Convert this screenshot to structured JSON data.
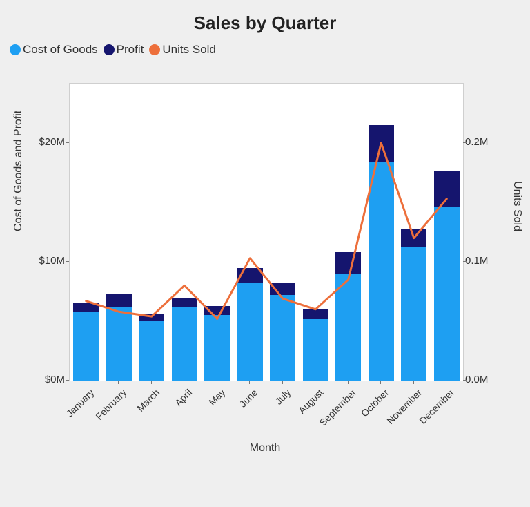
{
  "chart": {
    "type": "stacked-bar-with-line",
    "title": "Sales by Quarter",
    "background_color": "#efefef",
    "plot_background": "#ffffff",
    "plot_border_color": "#cfcfcf",
    "title_fontsize": 26,
    "label_fontsize": 16,
    "tick_fontsize": 15,
    "x_axis": {
      "label": "Month",
      "categories": [
        "January",
        "February",
        "March",
        "April",
        "May",
        "June",
        "July",
        "August",
        "September",
        "October",
        "November",
        "December"
      ],
      "tick_rotation_deg": -45
    },
    "y_axis_left": {
      "label": "Cost of Goods and Profit",
      "min": 0,
      "max": 25,
      "ticks": [
        0,
        10,
        20
      ],
      "tick_labels": [
        "$0M",
        "$10M",
        "$20M"
      ]
    },
    "y_axis_right": {
      "label": "Units Sold",
      "min": 0,
      "max": 0.25,
      "ticks": [
        0.0,
        0.1,
        0.2
      ],
      "tick_labels": [
        "0.0M",
        "0.1M",
        "0.2M"
      ]
    },
    "series": {
      "cost_of_goods": {
        "label": "Cost of Goods",
        "type": "bar",
        "stack": 0,
        "color": "#1e9ff2",
        "values": [
          5.8,
          6.2,
          5.0,
          6.2,
          5.5,
          8.2,
          7.2,
          5.2,
          9.0,
          18.4,
          11.3,
          14.6
        ]
      },
      "profit": {
        "label": "Profit",
        "type": "bar",
        "stack": 1,
        "color": "#15156e",
        "values": [
          0.8,
          1.1,
          0.6,
          0.8,
          0.8,
          1.3,
          1.0,
          0.8,
          1.8,
          3.1,
          1.5,
          3.0
        ]
      },
      "units_sold": {
        "label": "Units Sold",
        "type": "line",
        "color": "#ed6f3b",
        "line_width": 3,
        "values": [
          0.067,
          0.058,
          0.054,
          0.08,
          0.052,
          0.103,
          0.069,
          0.06,
          0.085,
          0.2,
          0.12,
          0.153
        ]
      }
    },
    "legend": {
      "position": "top-left",
      "items": [
        {
          "key": "cost_of_goods",
          "label": "Cost of Goods",
          "color": "#1e9ff2",
          "shape": "circle"
        },
        {
          "key": "profit",
          "label": "Profit",
          "color": "#15156e",
          "shape": "circle"
        },
        {
          "key": "units_sold",
          "label": "Units Sold",
          "color": "#ed6f3b",
          "shape": "circle"
        }
      ]
    },
    "bar_width_ratio": 0.78
  }
}
